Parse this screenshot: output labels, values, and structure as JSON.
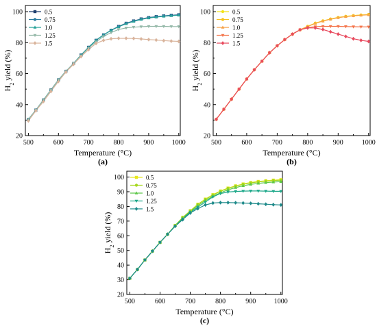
{
  "figure": {
    "panel_labels": [
      "(a)",
      "(b)",
      "(c)"
    ]
  },
  "chart_data": [
    {
      "type": "line",
      "panel": "(a)",
      "xlabel": "Temperature (°C)",
      "ylabel": "H2 yield (%)",
      "xlim": [
        490,
        1005
      ],
      "ylim": [
        20,
        104
      ],
      "xticks": [
        500,
        600,
        700,
        800,
        900,
        1000
      ],
      "yticks": [
        20,
        40,
        60,
        80,
        100
      ],
      "grid": false,
      "legend": "top-left",
      "x": [
        500,
        525,
        550,
        575,
        600,
        625,
        650,
        675,
        700,
        725,
        750,
        775,
        800,
        825,
        850,
        875,
        900,
        925,
        950,
        975,
        1000
      ],
      "series": [
        {
          "name": "0.5",
          "color": "#1f3f6e",
          "marker": "square",
          "values": [
            30.5,
            36.5,
            43,
            49.5,
            56,
            61.5,
            66.5,
            72,
            77,
            81.5,
            85,
            88,
            90.5,
            92.5,
            94,
            95.3,
            96.2,
            96.8,
            97.3,
            97.7,
            98
          ]
        },
        {
          "name": "0.75",
          "color": "#2b7ca0",
          "marker": "circle",
          "values": [
            30.5,
            36.5,
            43,
            49.5,
            56,
            61.5,
            66.5,
            72,
            77,
            81.5,
            85,
            88,
            90.4,
            92.4,
            93.9,
            95.2,
            96.1,
            96.7,
            97.2,
            97.6,
            97.9
          ]
        },
        {
          "name": "1.0",
          "color": "#2aa39a",
          "marker": "triangle-up",
          "values": [
            30.5,
            36.5,
            43,
            49.5,
            56,
            61.5,
            66.5,
            72,
            77,
            81.5,
            85,
            88,
            90.2,
            92.2,
            93.7,
            95,
            95.9,
            96.5,
            97,
            97.4,
            97.7
          ]
        },
        {
          "name": "1.25",
          "color": "#94b8a8",
          "marker": "triangle-down",
          "values": [
            30.5,
            36.5,
            43,
            49.5,
            56,
            61.5,
            66.5,
            71.5,
            76.5,
            80.5,
            84,
            86.5,
            88.5,
            89.5,
            90,
            90.3,
            90.5,
            90.5,
            90.5,
            90.4,
            90.4
          ]
        },
        {
          "name": "1.5",
          "color": "#d9b49c",
          "marker": "diamond",
          "values": [
            29.5,
            36,
            42,
            48.5,
            55,
            61,
            66,
            71,
            75.5,
            79.5,
            81.5,
            82.5,
            82.8,
            82.8,
            82.7,
            82.4,
            82,
            81.7,
            81.3,
            81,
            80.8
          ]
        }
      ]
    },
    {
      "type": "line",
      "panel": "(b)",
      "xlabel": "Temperature (°C)",
      "ylabel": "H2 yield (%)",
      "xlim": [
        490,
        1005
      ],
      "ylim": [
        20,
        104
      ],
      "xticks": [
        500,
        600,
        700,
        800,
        900,
        1000
      ],
      "yticks": [
        20,
        40,
        60,
        80,
        100
      ],
      "grid": false,
      "legend": "top-left",
      "x": [
        500,
        525,
        550,
        575,
        600,
        625,
        650,
        675,
        700,
        725,
        750,
        775,
        800,
        825,
        850,
        875,
        900,
        925,
        950,
        975,
        1000
      ],
      "series": [
        {
          "name": "0.5",
          "color": "#f4e21a",
          "marker": "circle",
          "values": [
            30.5,
            37,
            43.5,
            50,
            56.5,
            62.5,
            68,
            73.5,
            78,
            82,
            85.5,
            88.3,
            90.6,
            92.6,
            94.1,
            95.3,
            96.3,
            97,
            97.5,
            97.9,
            98.2
          ]
        },
        {
          "name": "0.75",
          "color": "#f7c21e",
          "marker": "circle",
          "values": [
            30.5,
            37,
            43.5,
            50,
            56.5,
            62.5,
            68,
            73.5,
            78,
            82,
            85.5,
            88.3,
            90.5,
            92.5,
            94,
            95.2,
            96.2,
            96.9,
            97.4,
            97.8,
            98.1
          ]
        },
        {
          "name": "1.0",
          "color": "#f7a24a",
          "marker": "triangle-up",
          "values": [
            30.5,
            37,
            43.5,
            50,
            56.5,
            62.5,
            68,
            73.5,
            78,
            82,
            85.5,
            88.3,
            90.4,
            92.4,
            93.9,
            95.1,
            96.1,
            96.8,
            97.3,
            97.7,
            98
          ]
        },
        {
          "name": "1.25",
          "color": "#f4744a",
          "marker": "triangle-down",
          "values": [
            30.5,
            37,
            43.5,
            50,
            56.5,
            62.5,
            68,
            73.5,
            78,
            82,
            85.5,
            88.3,
            89.8,
            90.3,
            90.5,
            90.5,
            90.5,
            90.4,
            90.3,
            90.2,
            90.2
          ]
        },
        {
          "name": "1.5",
          "color": "#e84a5e",
          "marker": "diamond",
          "values": [
            30.5,
            37,
            43.5,
            50,
            56.5,
            62.5,
            68,
            73.5,
            78,
            82,
            85.5,
            88.3,
            89.5,
            89.5,
            88.5,
            87,
            85.5,
            84,
            82.5,
            81.5,
            80.8
          ]
        }
      ]
    },
    {
      "type": "line",
      "panel": "(c)",
      "xlabel": "Temperature (°C)",
      "ylabel": "H2 yield (%)",
      "xlim": [
        490,
        1005
      ],
      "ylim": [
        20,
        104
      ],
      "xticks": [
        500,
        600,
        700,
        800,
        900,
        1000
      ],
      "yticks": [
        20,
        30,
        40,
        50,
        60,
        70,
        80,
        90,
        100
      ],
      "grid": false,
      "legend": "top-left",
      "x": [
        500,
        525,
        550,
        575,
        600,
        625,
        650,
        675,
        700,
        725,
        750,
        775,
        800,
        825,
        850,
        875,
        900,
        925,
        950,
        975,
        1000
      ],
      "series": [
        {
          "name": "0.5",
          "color": "#e8e81e",
          "marker": "square",
          "values": [
            31,
            37,
            43.5,
            49.5,
            55.5,
            61,
            67,
            72.5,
            77,
            81.5,
            85,
            88,
            90.5,
            92.5,
            94,
            95.3,
            96.3,
            97,
            97.5,
            97.9,
            98.2
          ]
        },
        {
          "name": "0.75",
          "color": "#a6d81e",
          "marker": "circle",
          "values": [
            31,
            37,
            43.5,
            49.5,
            55.5,
            61,
            67,
            72.5,
            77,
            81.3,
            84.8,
            87.8,
            90.3,
            92.3,
            93.8,
            95.1,
            96,
            96.7,
            97.2,
            97.6,
            97.9
          ]
        },
        {
          "name": "1.0",
          "color": "#5ec84a",
          "marker": "triangle-up",
          "values": [
            31,
            37,
            43.5,
            49.5,
            55.5,
            61,
            67,
            72,
            76.5,
            80.5,
            84,
            87,
            89.3,
            91.3,
            92.8,
            94.1,
            95,
            95.7,
            96.2,
            96.6,
            96.9
          ]
        },
        {
          "name": "1.25",
          "color": "#1ea88a",
          "marker": "triangle-down",
          "values": [
            31,
            37,
            43.5,
            49.5,
            55.5,
            61,
            66.5,
            71.5,
            76,
            79.5,
            83,
            86.5,
            88.8,
            89.8,
            90.2,
            90.4,
            90.5,
            90.5,
            90.4,
            90.3,
            90.3
          ]
        },
        {
          "name": "1.5",
          "color": "#1e8a8a",
          "marker": "diamond",
          "values": [
            31,
            37,
            43.5,
            49.5,
            55.5,
            61,
            66.5,
            71,
            75.5,
            78.5,
            81,
            82.3,
            82.6,
            82.6,
            82.5,
            82.3,
            82.1,
            81.8,
            81.5,
            81.2,
            81
          ]
        }
      ]
    }
  ]
}
